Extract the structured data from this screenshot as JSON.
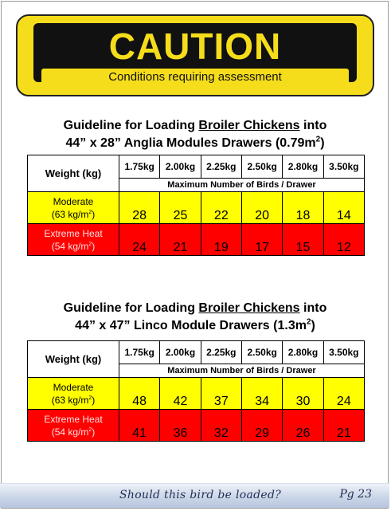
{
  "banner": {
    "word": "CAUTION",
    "subtitle": "Conditions requiring assessment"
  },
  "sections": [
    {
      "title_pre": "Guideline for Loading ",
      "title_underlined": "Broiler Chickens",
      "title_post": " into",
      "title_line2": "44” x 28” Anglia  Modules Drawers (0.79m",
      "title_sup": "2",
      "title_close": ")",
      "weight_label": "Weight (kg)",
      "weights": [
        "1.75kg",
        "2.00kg",
        "2.25kg",
        "2.50kg",
        "2.80kg",
        "3.50kg"
      ],
      "max_label": "Maximum Number of Birds / Drawer",
      "rows": [
        {
          "label": "Moderate",
          "density": "(63 kg/m",
          "density_sup": "2",
          "density_close": ")",
          "values": [
            "28",
            "25",
            "22",
            "20",
            "18",
            "14"
          ]
        },
        {
          "label": "Extreme Heat",
          "density": "(54 kg/m",
          "density_sup": "2",
          "density_close": ")",
          "values": [
            "24",
            "21",
            "19",
            "17",
            "15",
            "12"
          ]
        }
      ]
    },
    {
      "title_pre": "Guideline for Loading ",
      "title_underlined": "Broiler Chickens",
      "title_post": " into",
      "title_line2": "44” x 47” Linco Module Drawers (1.3m",
      "title_sup": "2",
      "title_close": ")",
      "weight_label": "Weight (kg)",
      "weights": [
        "1.75kg",
        "2.00kg",
        "2.25kg",
        "2.50kg",
        "2.80kg",
        "3.50kg"
      ],
      "max_label": "Maximum Number of Birds / Drawer",
      "rows": [
        {
          "label": "Moderate",
          "density": "(63 kg/m",
          "density_sup": "2",
          "density_close": ")",
          "values": [
            "48",
            "42",
            "37",
            "34",
            "30",
            "24"
          ]
        },
        {
          "label": "Extreme Heat",
          "density": "(54 kg/m",
          "density_sup": "2",
          "density_close": ")",
          "values": [
            "41",
            "36",
            "32",
            "29",
            "26",
            "21"
          ]
        }
      ]
    }
  ],
  "footer": {
    "question": "Should this bird be loaded?",
    "page": "Pg 23"
  },
  "colors": {
    "caution_yellow": "#f5dd1b",
    "moderate": "#ffff00",
    "extreme": "#ff0000"
  }
}
